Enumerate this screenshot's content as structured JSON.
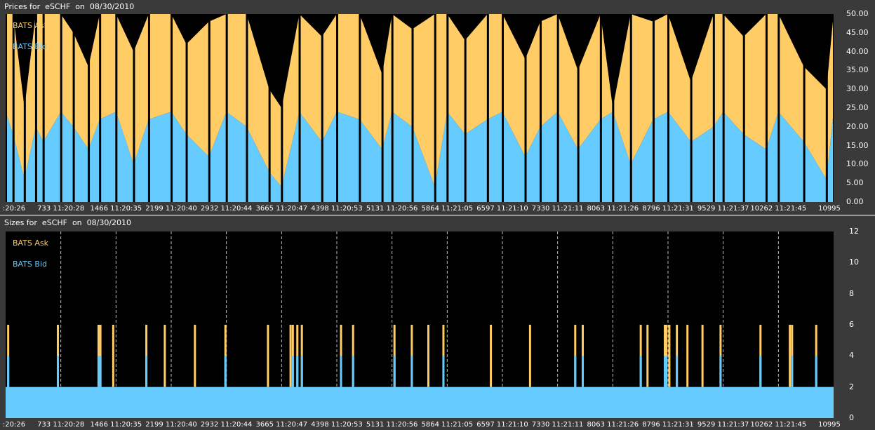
{
  "top_panel": {
    "title": "Prices for  eSCHF  on  08/30/2010",
    "legend": [
      {
        "label": "BATS Ask",
        "color": "#ffcc66"
      },
      {
        "label": "BATS Bid",
        "color": "#66ccff"
      }
    ]
  },
  "bottom_panel": {
    "title": "Sizes for  eSCHF  on  08/30/2010",
    "legend": [
      {
        "label": "BATS Ask",
        "color": "#ffcc66"
      },
      {
        "label": "BATS Bid",
        "color": "#66ccff"
      }
    ]
  },
  "x_ticks": [
    ":20:26",
    "733 11:20:28",
    "1466 11:20:35",
    "2199 11:20:40",
    "2932 11:20:44",
    "3665 11:20:47",
    "4398 11:20:53",
    "5131 11:20:56",
    "5864 11:21:05",
    "6597 11:21:10",
    "7330 11:21:11",
    "8063 11:21:26",
    "8796 11:21:31",
    "9529 11:21:37",
    "10262 11:21:45",
    "10995"
  ],
  "chart_data": [
    {
      "type": "area",
      "title": "Prices for  eSCHF  on  08/30/2010",
      "x_tick_labels": [
        ":20:26",
        "733 11:20:28",
        "1466 11:20:35",
        "2199 11:20:40",
        "2932 11:20:44",
        "3665 11:20:47",
        "4398 11:20:53",
        "5131 11:20:56",
        "5864 11:21:05",
        "6597 11:21:10",
        "7330 11:21:11",
        "8063 11:21:26",
        "8796 11:21:31",
        "9529 11:21:37",
        "10262 11:21:45",
        "10995"
      ],
      "xlim": [
        0,
        10995
      ],
      "ylim": [
        0,
        50
      ],
      "y_tick_labels": [
        "50.00",
        "45.00",
        "40.00",
        "35.00",
        "30.00",
        "25.00",
        "20.00",
        "15.00",
        "10.00",
        "5.00",
        "0.00"
      ],
      "grid": "vertical dashed",
      "legend_position": "top-left",
      "series": [
        {
          "name": "BATS Ask",
          "color": "#ffcc66",
          "x": [
            0,
            100,
            250,
            400,
            500,
            733,
            900,
            1100,
            1250,
            1466,
            1700,
            1900,
            2199,
            2400,
            2700,
            2932,
            3200,
            3500,
            3665,
            3900,
            4200,
            4398,
            4700,
            5000,
            5131,
            5400,
            5700,
            5864,
            6100,
            6400,
            6597,
            6900,
            7100,
            7330,
            7600,
            7900,
            8063,
            8300,
            8600,
            8796,
            9100,
            9400,
            9529,
            9800,
            10100,
            10262,
            10600,
            10900,
            10995
          ],
          "values": [
            50,
            50,
            25,
            50,
            50,
            50,
            45,
            36,
            50,
            50,
            40,
            50,
            50,
            42,
            48,
            50,
            50,
            30,
            25,
            50,
            44,
            50,
            50,
            34,
            50,
            46,
            50,
            50,
            43,
            50,
            50,
            38,
            48,
            50,
            35,
            50,
            25,
            50,
            48,
            50,
            32,
            50,
            50,
            44,
            50,
            50,
            36,
            30,
            50
          ]
        },
        {
          "name": "BATS Bid",
          "color": "#66ccff",
          "x": [
            0,
            100,
            250,
            400,
            500,
            733,
            900,
            1100,
            1250,
            1466,
            1700,
            1900,
            2199,
            2400,
            2700,
            2932,
            3200,
            3500,
            3665,
            3900,
            4200,
            4398,
            4700,
            5000,
            5131,
            5400,
            5700,
            5864,
            6100,
            6400,
            6597,
            6900,
            7100,
            7330,
            7600,
            7900,
            8063,
            8300,
            8600,
            8796,
            9100,
            9400,
            9529,
            9800,
            10100,
            10262,
            10600,
            10900,
            10995
          ],
          "values": [
            24,
            18,
            6,
            20,
            16,
            24,
            20,
            14,
            22,
            24,
            10,
            22,
            24,
            18,
            12,
            24,
            20,
            8,
            4,
            24,
            16,
            24,
            22,
            14,
            24,
            20,
            4,
            24,
            18,
            22,
            24,
            12,
            20,
            24,
            14,
            22,
            24,
            10,
            22,
            24,
            16,
            20,
            24,
            18,
            14,
            24,
            16,
            6,
            24
          ]
        }
      ]
    },
    {
      "type": "bar",
      "title": "Sizes for  eSCHF  on  08/30/2010",
      "x_tick_labels": [
        ":20:26",
        "733 11:20:28",
        "1466 11:20:35",
        "2199 11:20:40",
        "2932 11:20:44",
        "3665 11:20:47",
        "4398 11:20:53",
        "5131 11:20:56",
        "5864 11:21:05",
        "6597 11:21:10",
        "7330 11:21:11",
        "8063 11:21:26",
        "8796 11:21:31",
        "9529 11:21:37",
        "10262 11:21:45",
        "10995"
      ],
      "xlim": [
        0,
        10995
      ],
      "ylim": [
        0,
        12
      ],
      "y_tick_labels": [
        "12",
        "10",
        "8",
        "6",
        "4",
        "2",
        "0"
      ],
      "grid": "vertical dashed",
      "legend_position": "top-left",
      "baseline_bid_size": 2,
      "series": [
        {
          "name": "BATS Ask",
          "color": "#ffcc66",
          "x": [
            20,
            680,
            1220,
            1245,
            1415,
            1855,
            2100,
            2500,
            2905,
            3470,
            3770,
            3800,
            3860,
            3920,
            4440,
            4600,
            5150,
            5380,
            5600,
            5800,
            6430,
            6950,
            7550,
            7650,
            8420,
            8510,
            8740,
            8760,
            8800,
            8900,
            9040,
            9240,
            9480,
            10010,
            10400,
            10430,
            10750
          ],
          "values": [
            6,
            6,
            6,
            6,
            6,
            6,
            6,
            6,
            6,
            6,
            6,
            6,
            6,
            6,
            6,
            6,
            6,
            6,
            6,
            6,
            6,
            6,
            6,
            6,
            6,
            6,
            6,
            6,
            6,
            6,
            6,
            6,
            6,
            6,
            6,
            6,
            6
          ]
        },
        {
          "name": "BATS Bid",
          "color": "#66ccff",
          "x": [
            20,
            680,
            1220,
            1245,
            1855,
            2905,
            3800,
            3860,
            3920,
            4440,
            4600,
            5150,
            5380,
            5800,
            7550,
            7650,
            8420,
            8740,
            8760,
            8900,
            9480,
            10010,
            10430,
            10750
          ],
          "values": [
            4,
            4,
            4,
            4,
            4,
            4,
            4,
            4,
            4,
            4,
            4,
            4,
            4,
            4,
            4,
            4,
            4,
            4,
            4,
            4,
            4,
            4,
            4,
            4
          ]
        }
      ]
    }
  ]
}
